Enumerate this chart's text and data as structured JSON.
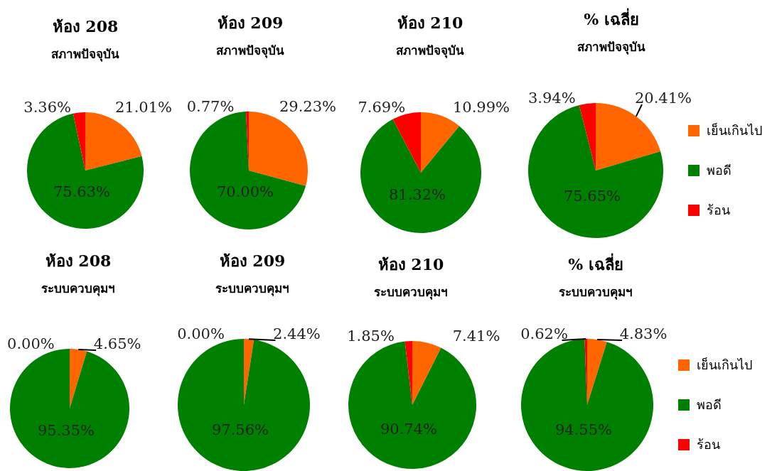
{
  "chart_data": [
    {
      "type": "pie",
      "title": "ห้อง 208",
      "subtitle": "สภาพปัจจุบัน",
      "categories": [
        null,
        null,
        null
      ],
      "values": [
        21.01,
        75.63,
        3.36
      ],
      "value_labels": [
        "21.01%",
        "75.63%",
        "3.36%"
      ],
      "colors": [
        "#ff6600",
        "#008000",
        "#ff0000"
      ],
      "legend": false
    },
    {
      "type": "pie",
      "title": "ห้อง 209",
      "subtitle": "สภาพปัจจุบัน",
      "categories": [
        null,
        null,
        null
      ],
      "values": [
        29.23,
        70.0,
        0.77
      ],
      "value_labels": [
        "29.23%",
        "70.00%",
        "0.77%"
      ],
      "colors": [
        "#ff6600",
        "#008000",
        "#ff0000"
      ],
      "legend": false
    },
    {
      "type": "pie",
      "title": "ห้อง 210",
      "subtitle": "สภาพปัจจุบัน",
      "categories": [
        null,
        null,
        null
      ],
      "values": [
        10.99,
        81.32,
        7.69
      ],
      "value_labels": [
        "10.99%",
        "81.32%",
        "7.69%"
      ],
      "colors": [
        "#ff6600",
        "#008000",
        "#ff0000"
      ],
      "legend": false
    },
    {
      "type": "pie",
      "title": "% เฉลี่ย",
      "subtitle": "สภาพปัจจุบัน",
      "categories": [
        "เย็นเกินไป",
        "พอดี",
        "ร้อน"
      ],
      "values": [
        20.41,
        75.65,
        3.94
      ],
      "value_labels": [
        "20.41%",
        "75.65%",
        "3.94%"
      ],
      "colors": [
        "#ff6600",
        "#008000",
        "#ff0000"
      ],
      "legend": "right"
    },
    {
      "type": "pie",
      "title": "ห้อง 208",
      "subtitle": "ระบบควบคุมฯ",
      "categories": [
        null,
        null,
        null
      ],
      "values": [
        4.65,
        95.35,
        0.0
      ],
      "value_labels": [
        "4.65%",
        "95.35%",
        "0.00%"
      ],
      "colors": [
        "#ff6600",
        "#008000",
        "#ff0000"
      ],
      "legend": false
    },
    {
      "type": "pie",
      "title": "ห้อง 209",
      "subtitle": "ระบบควบคุมฯ",
      "categories": [
        null,
        null,
        null
      ],
      "values": [
        2.44,
        97.56,
        0.0
      ],
      "value_labels": [
        "2.44%",
        "97.56%",
        "0.00%"
      ],
      "colors": [
        "#ff6600",
        "#008000",
        "#ff0000"
      ],
      "legend": false
    },
    {
      "type": "pie",
      "title": "ห้อง 210",
      "subtitle": "ระบบควบคุมฯ",
      "categories": [
        null,
        null,
        null
      ],
      "values": [
        7.41,
        90.74,
        1.85
      ],
      "value_labels": [
        "7.41%",
        "90.74%",
        "1.85%"
      ],
      "colors": [
        "#ff6600",
        "#008000",
        "#ff0000"
      ],
      "legend": false
    },
    {
      "type": "pie",
      "title": "% เฉลี่ย",
      "subtitle": "ระบบควบคุมฯ",
      "categories": [
        "เย็นเกินไป",
        "พอดี",
        "ร้อน"
      ],
      "values": [
        4.83,
        94.55,
        0.62
      ],
      "value_labels": [
        "4.83%",
        "94.55%",
        "0.62%"
      ],
      "colors": [
        "#ff6600",
        "#008000",
        "#ff0000"
      ],
      "legend": "right"
    }
  ]
}
